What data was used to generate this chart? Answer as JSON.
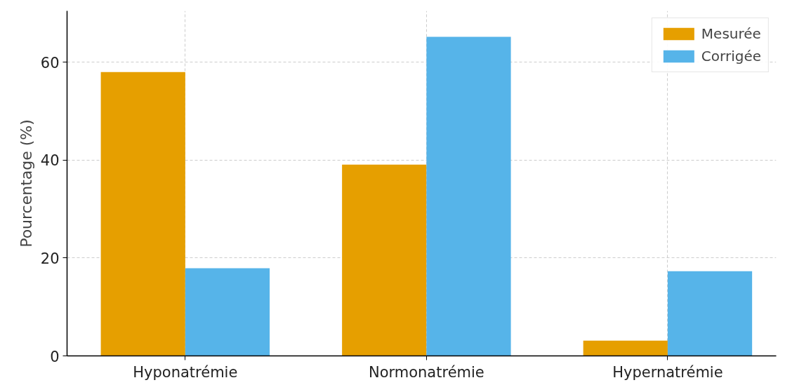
{
  "chart_data": {
    "type": "bar",
    "ylabel": "Pourcentage (%)",
    "categories": [
      "Hyponatrémie",
      "Normonatrémie",
      "Hypernatrémie"
    ],
    "series": [
      {
        "name": "Mesurée",
        "color": "#e69f00",
        "values": [
          58.0,
          39.1,
          3.1
        ]
      },
      {
        "name": "Corrigée",
        "color": "#56b4e9",
        "values": [
          17.9,
          65.2,
          17.3
        ]
      }
    ],
    "ylim": [
      0,
      70.5
    ],
    "yticks": [
      0,
      20,
      40,
      60
    ],
    "grid": true,
    "legend": "top right"
  }
}
